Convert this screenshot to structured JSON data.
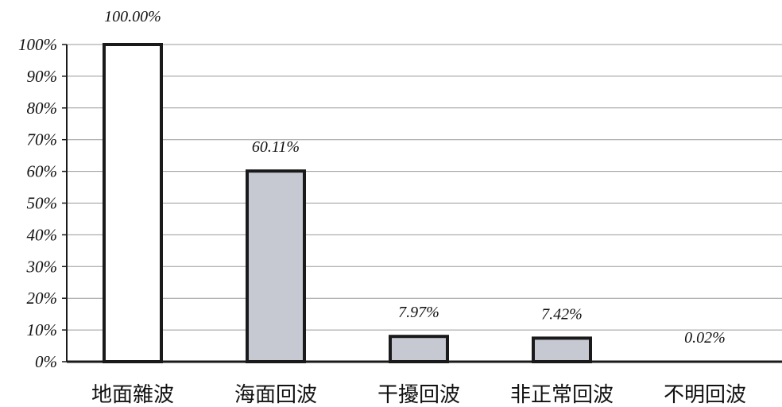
{
  "chart_data": {
    "type": "bar",
    "categories": [
      "地面雜波",
      "海面回波",
      "干擾回波",
      "非正常回波",
      "不明回波"
    ],
    "values": [
      100.0,
      60.11,
      7.97,
      7.42,
      0.02
    ],
    "data_labels": [
      "100.00%",
      "60.11%",
      "7.97%",
      "7.42%",
      "0.02%"
    ],
    "title": "",
    "xlabel": "",
    "ylabel": "",
    "ylim": [
      0,
      100
    ],
    "y_ticks": [
      "0%",
      "10%",
      "20%",
      "30%",
      "40%",
      "50%",
      "60%",
      "70%",
      "80%",
      "90%",
      "100%"
    ],
    "grid": true,
    "colors": {
      "first_bar_fill": "#ffffff",
      "bar_fill": "#c6c9d2",
      "bar_stroke": "#1a1a1a",
      "grid": "#9a9a9a",
      "axis": "#1a1a1a"
    }
  }
}
